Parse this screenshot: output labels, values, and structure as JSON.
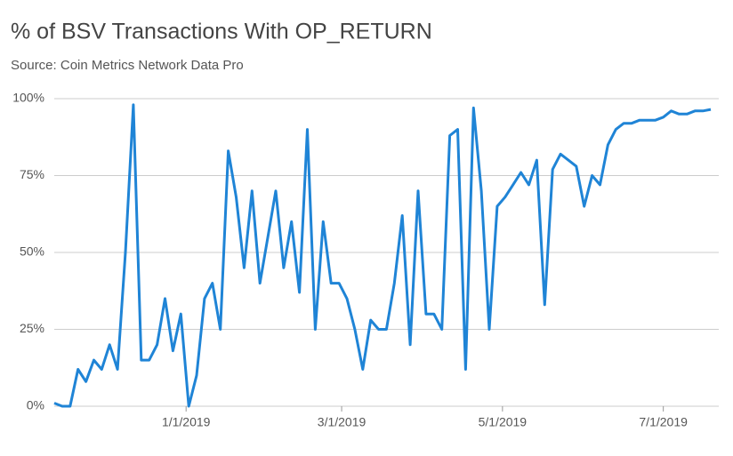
{
  "chart_data": {
    "type": "line",
    "title": "% of BSV Transactions With OP_RETURN",
    "subtitle": "Source: Coin Metrics Network Data Pro",
    "x": [
      "11/12/2018",
      "11/15/2018",
      "11/18/2018",
      "11/21/2018",
      "11/24/2018",
      "11/27/2018",
      "11/30/2018",
      "12/3/2018",
      "12/6/2018",
      "12/9/2018",
      "12/12/2018",
      "12/15/2018",
      "12/18/2018",
      "12/21/2018",
      "12/24/2018",
      "12/27/2018",
      "12/30/2018",
      "1/2/2019",
      "1/5/2019",
      "1/8/2019",
      "1/11/2019",
      "1/14/2019",
      "1/17/2019",
      "1/20/2019",
      "1/23/2019",
      "1/26/2019",
      "1/29/2019",
      "2/1/2019",
      "2/4/2019",
      "2/7/2019",
      "2/10/2019",
      "2/13/2019",
      "2/16/2019",
      "2/19/2019",
      "2/22/2019",
      "2/25/2019",
      "2/28/2019",
      "3/3/2019",
      "3/6/2019",
      "3/9/2019",
      "3/12/2019",
      "3/15/2019",
      "3/18/2019",
      "3/21/2019",
      "3/24/2019",
      "3/27/2019",
      "3/30/2019",
      "4/2/2019",
      "4/5/2019",
      "4/8/2019",
      "4/11/2019",
      "4/14/2019",
      "4/17/2019",
      "4/20/2019",
      "4/23/2019",
      "4/26/2019",
      "4/29/2019",
      "5/2/2019",
      "5/5/2019",
      "5/8/2019",
      "5/11/2019",
      "5/14/2019",
      "5/17/2019",
      "5/20/2019",
      "5/23/2019",
      "5/26/2019",
      "5/29/2019",
      "6/1/2019",
      "6/4/2019",
      "6/7/2019",
      "6/10/2019",
      "6/13/2019",
      "6/16/2019",
      "6/19/2019",
      "6/22/2019",
      "6/25/2019",
      "6/28/2019",
      "7/1/2019",
      "7/4/2019",
      "7/7/2019",
      "7/10/2019",
      "7/13/2019",
      "7/16/2019",
      "7/19/2019"
    ],
    "series": [
      {
        "name": "% with OP_RETURN",
        "color": "#1f84d6",
        "values": [
          1,
          0,
          0,
          12,
          8,
          15,
          12,
          20,
          12,
          50,
          98,
          15,
          15,
          20,
          35,
          18,
          30,
          0,
          10,
          35,
          40,
          25,
          83,
          68,
          45,
          70,
          40,
          55,
          70,
          45,
          60,
          37,
          90,
          25,
          60,
          40,
          40,
          35,
          25,
          12,
          28,
          25,
          25,
          40,
          62,
          20,
          70,
          30,
          30,
          25,
          88,
          90,
          12,
          97,
          70,
          25,
          65,
          68,
          72,
          76,
          72,
          80,
          33,
          77,
          82,
          80,
          78,
          65,
          75,
          72,
          85,
          90,
          92,
          92,
          93,
          93,
          93,
          94,
          96,
          95,
          95,
          96,
          96,
          96.5
        ]
      }
    ],
    "xlim": [
      "11/12/2018",
      "7/19/2019"
    ],
    "xticks": [
      "1/1/2019",
      "3/1/2019",
      "5/1/2019",
      "7/1/2019"
    ],
    "ylim": [
      0,
      100
    ],
    "yticks": [
      {
        "value": 0,
        "label": "0%"
      },
      {
        "value": 25,
        "label": "25%"
      },
      {
        "value": 50,
        "label": "50%"
      },
      {
        "value": 75,
        "label": "75%"
      },
      {
        "value": 100,
        "label": "100%"
      }
    ],
    "grid": true
  }
}
